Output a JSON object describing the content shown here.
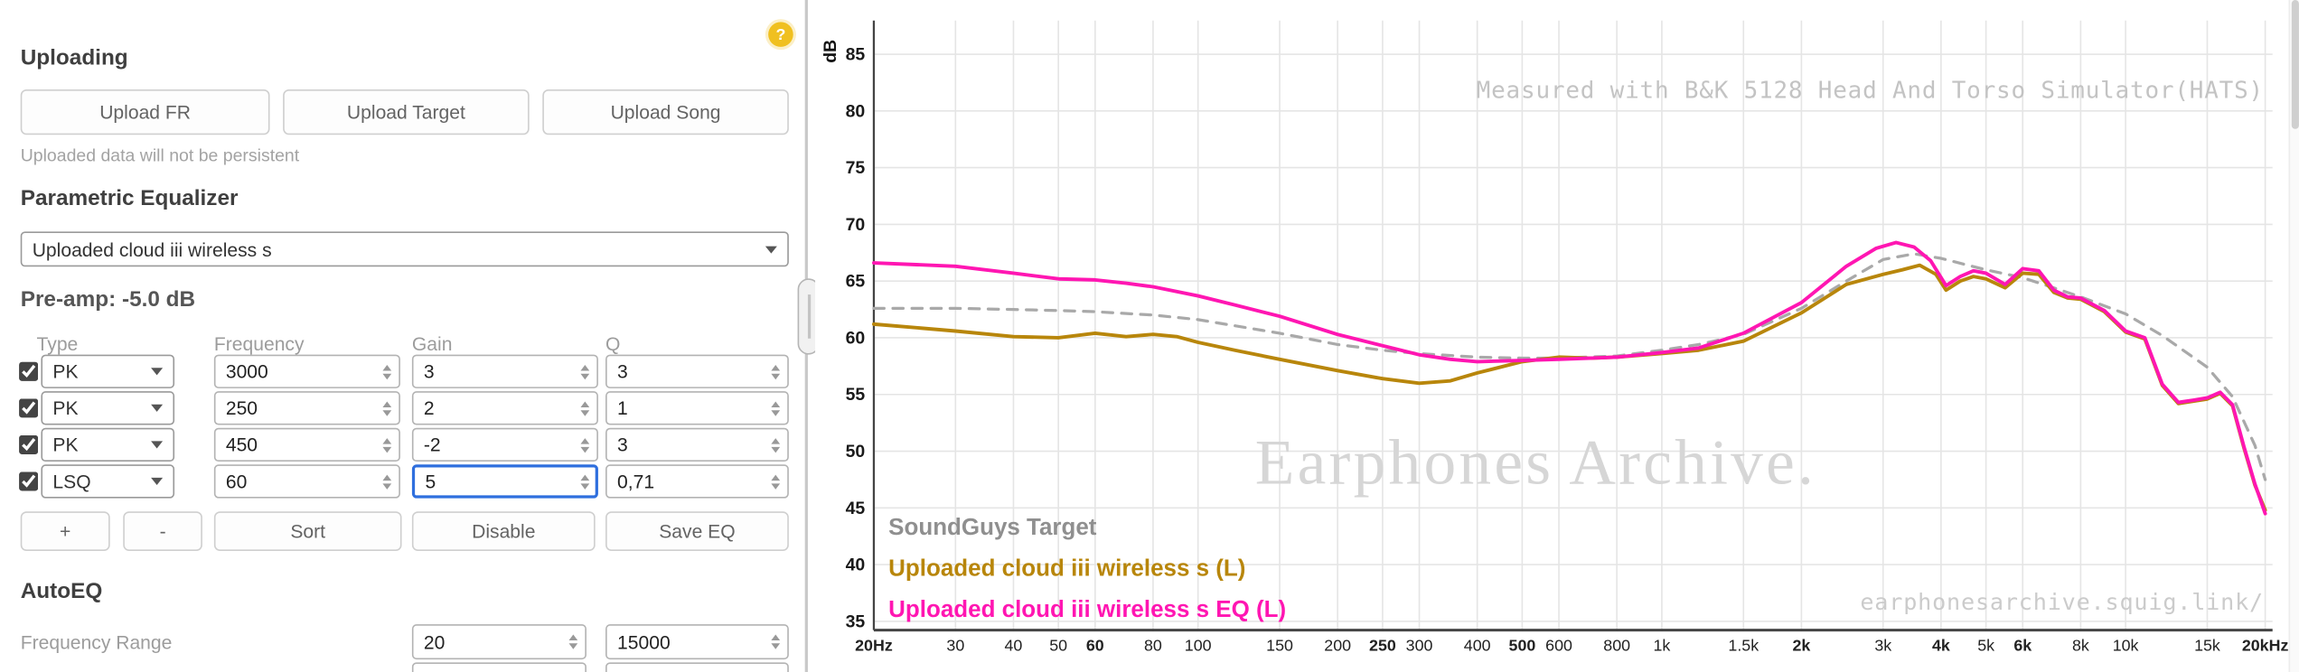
{
  "uploading": {
    "title": "Uploading",
    "help_label": "?",
    "buttons": [
      {
        "label": "Upload FR"
      },
      {
        "label": "Upload Target"
      },
      {
        "label": "Upload Song"
      }
    ],
    "note": "Uploaded data will not be persistent"
  },
  "peq": {
    "title": "Parametric Equalizer",
    "device": "Uploaded cloud iii wireless s",
    "preamp": "Pre-amp: -5.0 dB",
    "columns": [
      "Type",
      "Frequency",
      "Gain",
      "Q"
    ],
    "filters": [
      {
        "checked": "checked",
        "type": "PK",
        "freq": "3000",
        "gain": "3",
        "q": "3"
      },
      {
        "checked": "checked",
        "type": "PK",
        "freq": "250",
        "gain": "2",
        "q": "1"
      },
      {
        "checked": "checked",
        "type": "PK",
        "freq": "450",
        "gain": "-2",
        "q": "3"
      },
      {
        "checked": "checked",
        "type": "LSQ",
        "freq": "60",
        "gain": "5",
        "q": "0,71"
      }
    ],
    "actions": [
      "+",
      "-",
      "Sort",
      "Disable",
      "Save EQ"
    ]
  },
  "autoeq": {
    "title": "AutoEQ",
    "freq_range_label": "Frequency Range",
    "range_min": "20",
    "range_max": "15000"
  },
  "graph": {
    "db_label": "dB",
    "watermark_top": "Measured with B&K 5128 Head And Torso Simulator(HATS)",
    "watermark_center": "Earphones Archive.",
    "watermark_bottom": "earphonesarchive.squig.link/"
  },
  "chart_data": {
    "type": "line",
    "x_scale": "log",
    "xlim": [
      20,
      20000
    ],
    "ylim": [
      35,
      87
    ],
    "ylabel": "dB",
    "grid": true,
    "y_ticks": [
      35,
      40,
      45,
      50,
      55,
      60,
      65,
      70,
      75,
      80,
      85
    ],
    "x_ticks": [
      {
        "f": 20,
        "label": "20Hz",
        "bold": true
      },
      {
        "f": 30,
        "label": "30",
        "bold": false
      },
      {
        "f": 40,
        "label": "40",
        "bold": false
      },
      {
        "f": 50,
        "label": "50",
        "bold": false
      },
      {
        "f": 60,
        "label": "60",
        "bold": true
      },
      {
        "f": 80,
        "label": "80",
        "bold": false
      },
      {
        "f": 100,
        "label": "100",
        "bold": false
      },
      {
        "f": 150,
        "label": "150",
        "bold": false
      },
      {
        "f": 200,
        "label": "200",
        "bold": false
      },
      {
        "f": 250,
        "label": "250",
        "bold": true
      },
      {
        "f": 300,
        "label": "300",
        "bold": false
      },
      {
        "f": 400,
        "label": "400",
        "bold": false
      },
      {
        "f": 500,
        "label": "500",
        "bold": true
      },
      {
        "f": 600,
        "label": "600",
        "bold": false
      },
      {
        "f": 800,
        "label": "800",
        "bold": false
      },
      {
        "f": 1000,
        "label": "1k",
        "bold": false
      },
      {
        "f": 1500,
        "label": "1.5k",
        "bold": false
      },
      {
        "f": 2000,
        "label": "2k",
        "bold": true
      },
      {
        "f": 3000,
        "label": "3k",
        "bold": false
      },
      {
        "f": 4000,
        "label": "4k",
        "bold": true
      },
      {
        "f": 5000,
        "label": "5k",
        "bold": false
      },
      {
        "f": 6000,
        "label": "6k",
        "bold": true
      },
      {
        "f": 8000,
        "label": "8k",
        "bold": false
      },
      {
        "f": 10000,
        "label": "10k",
        "bold": false
      },
      {
        "f": 15000,
        "label": "15k",
        "bold": false
      },
      {
        "f": 20000,
        "label": "20kHz",
        "bold": true
      }
    ],
    "legend": [
      {
        "name": "SoundGuys Target",
        "color": "#8f8f8f"
      },
      {
        "name": "Uploaded cloud iii wireless s (L)",
        "color": "#b8860b"
      },
      {
        "name": "Uploaded cloud iii wireless s EQ (L)",
        "color": "#ff16b2"
      }
    ],
    "series": [
      {
        "name": "SoundGuys Target",
        "color": "#a9a9a9",
        "dash": true,
        "width": 2,
        "points": [
          [
            20,
            62.6
          ],
          [
            30,
            62.6
          ],
          [
            40,
            62.5
          ],
          [
            50,
            62.4
          ],
          [
            60,
            62.3
          ],
          [
            80,
            62.0
          ],
          [
            100,
            61.6
          ],
          [
            150,
            60.4
          ],
          [
            200,
            59.4
          ],
          [
            250,
            58.9
          ],
          [
            300,
            58.6
          ],
          [
            400,
            58.3
          ],
          [
            500,
            58.2
          ],
          [
            600,
            58.2
          ],
          [
            800,
            58.4
          ],
          [
            1000,
            58.9
          ],
          [
            1200,
            59.4
          ],
          [
            1500,
            60.3
          ],
          [
            2000,
            62.6
          ],
          [
            2500,
            65.0
          ],
          [
            3000,
            66.9
          ],
          [
            3500,
            67.4
          ],
          [
            4000,
            67.0
          ],
          [
            5000,
            66.0
          ],
          [
            6000,
            65.3
          ],
          [
            7000,
            64.4
          ],
          [
            8000,
            63.6
          ],
          [
            10000,
            62.1
          ],
          [
            12000,
            60.2
          ],
          [
            15000,
            57.4
          ],
          [
            17000,
            54.8
          ],
          [
            19000,
            50.5
          ],
          [
            20000,
            47.5
          ]
        ]
      },
      {
        "name": "Uploaded cloud iii wireless s (L)",
        "color": "#b8860b",
        "dash": false,
        "width": 2.4,
        "points": [
          [
            20,
            61.2
          ],
          [
            30,
            60.6
          ],
          [
            40,
            60.1
          ],
          [
            50,
            60.0
          ],
          [
            60,
            60.4
          ],
          [
            70,
            60.1
          ],
          [
            80,
            60.3
          ],
          [
            90,
            60.1
          ],
          [
            100,
            59.6
          ],
          [
            120,
            58.9
          ],
          [
            150,
            58.1
          ],
          [
            200,
            57.1
          ],
          [
            250,
            56.4
          ],
          [
            300,
            56.0
          ],
          [
            350,
            56.2
          ],
          [
            400,
            56.9
          ],
          [
            500,
            57.9
          ],
          [
            600,
            58.3
          ],
          [
            700,
            58.2
          ],
          [
            800,
            58.3
          ],
          [
            1000,
            58.6
          ],
          [
            1200,
            58.9
          ],
          [
            1500,
            59.7
          ],
          [
            2000,
            62.2
          ],
          [
            2500,
            64.7
          ],
          [
            3000,
            65.6
          ],
          [
            3300,
            66.0
          ],
          [
            3600,
            66.4
          ],
          [
            3900,
            65.6
          ],
          [
            4100,
            64.2
          ],
          [
            4400,
            65.0
          ],
          [
            4700,
            65.4
          ],
          [
            5000,
            65.2
          ],
          [
            5500,
            64.4
          ],
          [
            6000,
            65.7
          ],
          [
            6500,
            65.6
          ],
          [
            7000,
            64.0
          ],
          [
            7500,
            63.5
          ],
          [
            8000,
            63.4
          ],
          [
            9000,
            62.3
          ],
          [
            10000,
            60.5
          ],
          [
            11000,
            59.9
          ],
          [
            12000,
            55.8
          ],
          [
            13000,
            54.2
          ],
          [
            14000,
            54.4
          ],
          [
            15000,
            54.6
          ],
          [
            16000,
            55.1
          ],
          [
            17000,
            54.0
          ],
          [
            18000,
            50.3
          ],
          [
            19000,
            47.0
          ],
          [
            20000,
            44.8
          ]
        ]
      },
      {
        "name": "Uploaded cloud iii wireless s EQ (L)",
        "color": "#ff16b2",
        "dash": false,
        "width": 2.4,
        "points": [
          [
            20,
            66.6
          ],
          [
            30,
            66.3
          ],
          [
            40,
            65.7
          ],
          [
            50,
            65.2
          ],
          [
            60,
            65.1
          ],
          [
            70,
            64.8
          ],
          [
            80,
            64.5
          ],
          [
            100,
            63.7
          ],
          [
            120,
            62.9
          ],
          [
            150,
            61.9
          ],
          [
            200,
            60.3
          ],
          [
            250,
            59.3
          ],
          [
            300,
            58.5
          ],
          [
            350,
            58.1
          ],
          [
            400,
            57.9
          ],
          [
            500,
            58.0
          ],
          [
            600,
            58.1
          ],
          [
            800,
            58.3
          ],
          [
            1000,
            58.7
          ],
          [
            1200,
            59.1
          ],
          [
            1500,
            60.4
          ],
          [
            2000,
            63.1
          ],
          [
            2500,
            66.3
          ],
          [
            2900,
            67.9
          ],
          [
            3200,
            68.4
          ],
          [
            3500,
            68.0
          ],
          [
            3800,
            66.8
          ],
          [
            4100,
            64.6
          ],
          [
            4400,
            65.4
          ],
          [
            4700,
            65.9
          ],
          [
            5000,
            65.7
          ],
          [
            5500,
            64.7
          ],
          [
            6000,
            66.1
          ],
          [
            6500,
            65.9
          ],
          [
            7000,
            64.2
          ],
          [
            7500,
            63.6
          ],
          [
            8000,
            63.5
          ],
          [
            9000,
            62.4
          ],
          [
            10000,
            60.6
          ],
          [
            11000,
            60.0
          ],
          [
            12000,
            55.9
          ],
          [
            13000,
            54.3
          ],
          [
            14000,
            54.5
          ],
          [
            15000,
            54.7
          ],
          [
            16000,
            55.2
          ],
          [
            17000,
            54.1
          ],
          [
            18000,
            50.4
          ],
          [
            19000,
            47.1
          ],
          [
            20000,
            44.5
          ]
        ]
      }
    ]
  }
}
